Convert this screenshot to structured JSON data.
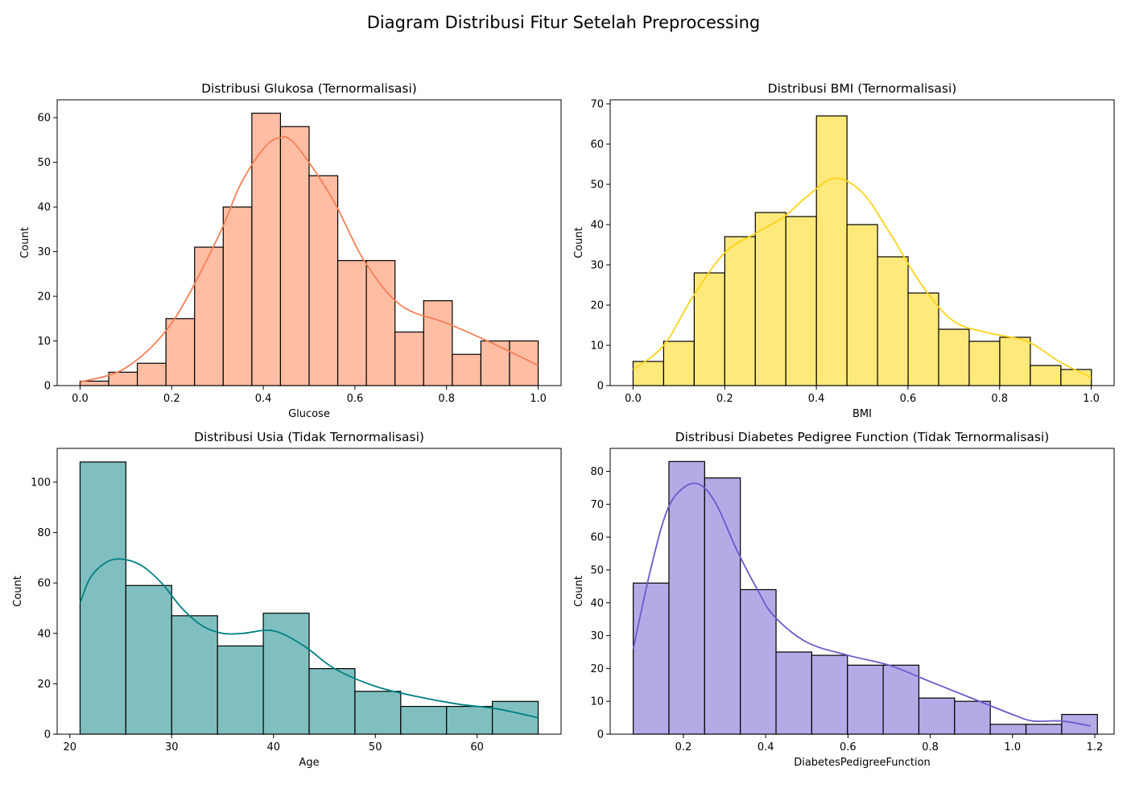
{
  "figure": {
    "title": "Diagram Distribusi Fitur Setelah Preprocessing"
  },
  "chart_data": [
    {
      "type": "histogram",
      "title": "Distribusi Glukosa (Ternormalisasi)",
      "xlabel": "Glucose",
      "ylabel": "Count",
      "bin_start": 0.0,
      "bin_width": 0.0625,
      "counts": [
        1,
        3,
        5,
        15,
        31,
        40,
        61,
        58,
        47,
        28,
        28,
        12,
        19,
        7,
        10,
        10
      ],
      "xlim": [
        -0.05,
        1.05
      ],
      "ylim": [
        0,
        64
      ],
      "xticks": [
        0.0,
        0.2,
        0.4,
        0.6,
        0.8,
        1.0
      ],
      "xtick_labels": [
        "0.0",
        "0.2",
        "0.4",
        "0.6",
        "0.8",
        "1.0"
      ],
      "yticks": [
        0,
        10,
        20,
        30,
        40,
        50,
        60
      ],
      "fill_color": "#ffbda4",
      "kde_color": "#f47f55",
      "kde": {
        "x": [
          0.0,
          0.1,
          0.2,
          0.3,
          0.35,
          0.4,
          0.435,
          0.47,
          0.55,
          0.62,
          0.7,
          0.8,
          0.9,
          1.0
        ],
        "y": [
          0.8,
          4,
          14,
          33,
          45,
          53,
          55.5,
          54,
          42,
          28,
          18,
          14,
          9.5,
          4.5
        ]
      },
      "grid": false,
      "legend": "none"
    },
    {
      "type": "histogram",
      "title": "Distribusi BMI (Ternormalisasi)",
      "xlabel": "BMI",
      "ylabel": "Count",
      "bin_start": 0.0,
      "bin_width": 0.0667,
      "counts": [
        6,
        11,
        28,
        37,
        43,
        42,
        67,
        40,
        32,
        23,
        14,
        11,
        12,
        5,
        4
      ],
      "xlim": [
        -0.05,
        1.05
      ],
      "ylim": [
        0,
        71
      ],
      "xticks": [
        0.0,
        0.2,
        0.4,
        0.6,
        0.8,
        1.0
      ],
      "xtick_labels": [
        "0.0",
        "0.2",
        "0.4",
        "0.6",
        "0.8",
        "1.0"
      ],
      "yticks": [
        0,
        10,
        20,
        30,
        40,
        50,
        60,
        70
      ],
      "fill_color": "#ffe97b",
      "kde_color": "#fbd317",
      "kde": {
        "x": [
          0.0,
          0.067,
          0.13,
          0.2,
          0.27,
          0.33,
          0.38,
          0.44,
          0.5,
          0.56,
          0.63,
          0.7,
          0.78,
          0.86,
          0.93,
          1.0
        ],
        "y": [
          4,
          10,
          22,
          33,
          38,
          42,
          47,
          51.5,
          48,
          38,
          25,
          16,
          13,
          11,
          6,
          2
        ]
      },
      "grid": false,
      "legend": "none"
    },
    {
      "type": "histogram",
      "title": "Distribusi Usia (Tidak Ternormalisasi)",
      "xlabel": "Age",
      "ylabel": "Count",
      "bin_start": 21,
      "bin_width": 4.5,
      "counts": [
        108,
        59,
        47,
        35,
        48,
        26,
        17,
        11,
        11,
        13
      ],
      "xlim": [
        18.75,
        68.25
      ],
      "ylim": [
        0,
        113.4
      ],
      "xticks": [
        20,
        30,
        40,
        50,
        60
      ],
      "xtick_labels": [
        "20",
        "30",
        "40",
        "50",
        "60"
      ],
      "yticks": [
        0,
        20,
        40,
        60,
        80,
        100
      ],
      "fill_color": "#80bfbf",
      "kde_color": "#008080",
      "kde": {
        "x": [
          21,
          22,
          23.5,
          25,
          27,
          29,
          31,
          33,
          35,
          37,
          40,
          43,
          46,
          50,
          54,
          58,
          62,
          66
        ],
        "y": [
          52,
          62,
          68,
          69.5,
          67,
          60,
          50,
          43,
          40,
          40,
          41,
          35,
          26,
          19,
          15,
          12,
          10,
          6.5
        ]
      },
      "grid": false,
      "legend": "none"
    },
    {
      "type": "histogram",
      "title": "Distribusi Diabetes Pedigree Function (Tidak Ternormalisasi)",
      "xlabel": "DiabetesPedigreeFunction",
      "ylabel": "Count",
      "bin_start": 0.078,
      "bin_width": 0.0868,
      "counts": [
        46,
        83,
        78,
        44,
        25,
        24,
        21,
        21,
        11,
        10,
        3,
        3,
        6
      ],
      "xlim": [
        0.022,
        1.247
      ],
      "ylim": [
        0,
        87
      ],
      "xticks": [
        0.2,
        0.4,
        0.6,
        0.8,
        1.0,
        1.2
      ],
      "xtick_labels": [
        "0.2",
        "0.4",
        "0.6",
        "0.8",
        "1.0",
        "1.2"
      ],
      "yticks": [
        0,
        10,
        20,
        30,
        40,
        50,
        60,
        70,
        80
      ],
      "fill_color": "#b3abe6",
      "kde_color": "#6a5acd",
      "kde": {
        "x": [
          0.078,
          0.12,
          0.16,
          0.2,
          0.24,
          0.28,
          0.33,
          0.38,
          0.42,
          0.5,
          0.6,
          0.7,
          0.8,
          0.9,
          1.0,
          1.05,
          1.12,
          1.19
        ],
        "y": [
          26,
          50,
          68,
          75,
          76,
          70,
          56,
          44,
          36,
          28,
          24,
          21,
          16,
          11,
          6,
          4,
          4,
          2.5
        ]
      },
      "grid": false,
      "legend": "none"
    }
  ]
}
